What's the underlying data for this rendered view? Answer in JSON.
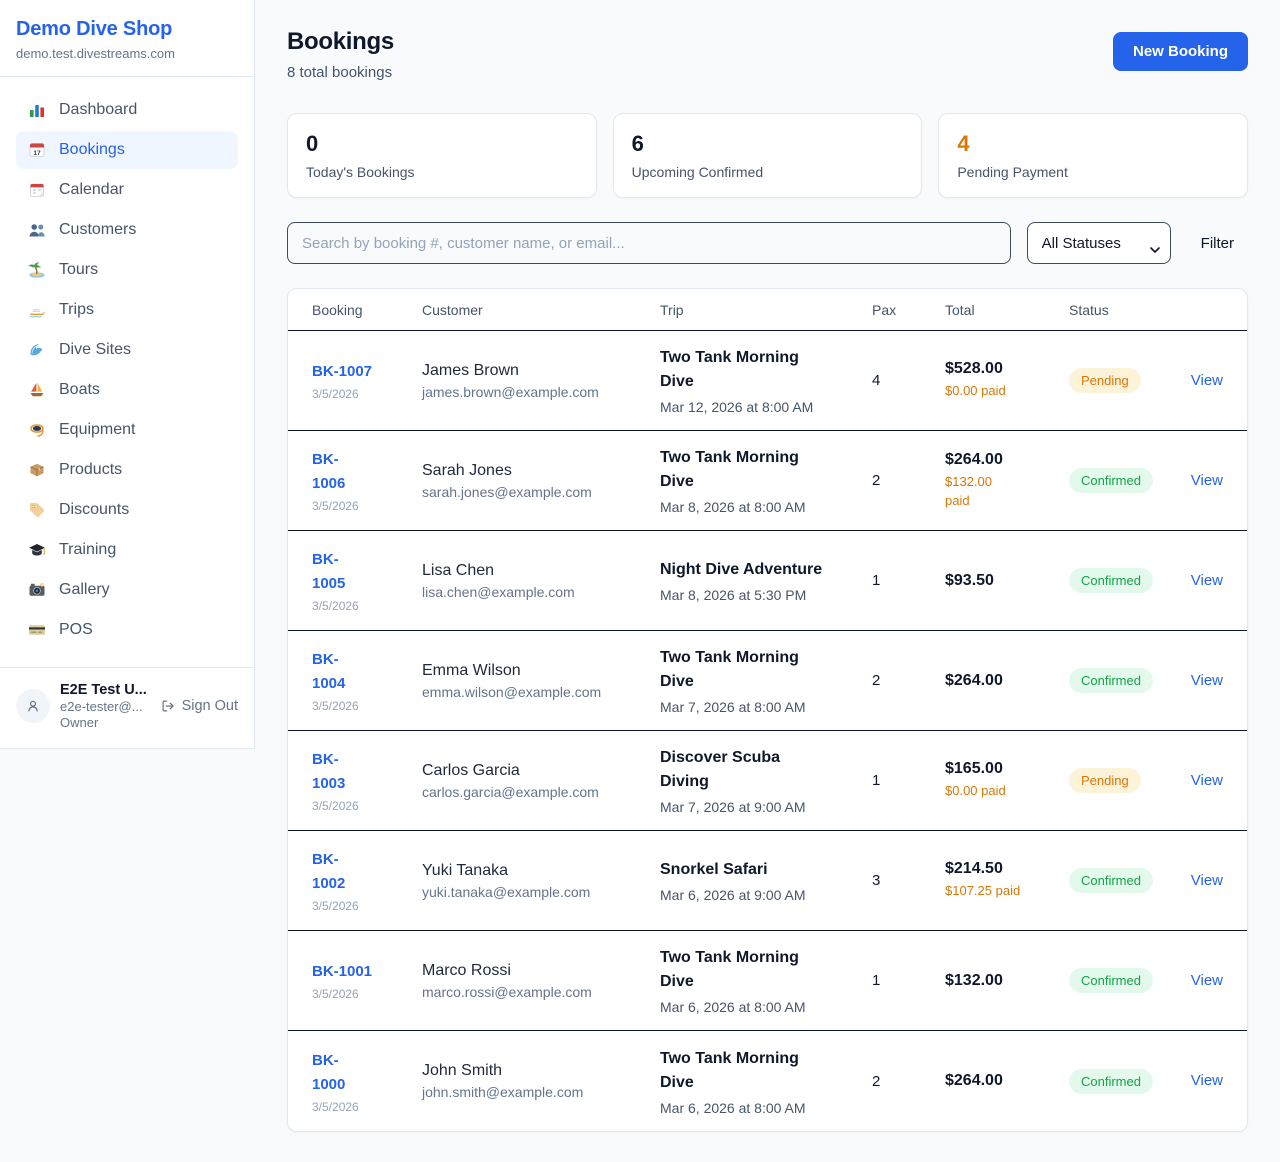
{
  "colors": {
    "brand": "#2563eb",
    "pending": "#d97706",
    "confirmed": "#16a34a",
    "link": "#2563eb"
  },
  "sidebar": {
    "brand": {
      "name": "Demo Dive Shop",
      "domain": "demo.test.divestreams.com"
    },
    "items": [
      {
        "icon": "bar-chart",
        "label": "Dashboard",
        "active": false
      },
      {
        "icon": "calendar-date",
        "label": "Bookings",
        "active": true
      },
      {
        "icon": "calendar",
        "label": "Calendar",
        "active": false
      },
      {
        "icon": "people",
        "label": "Customers",
        "active": false
      },
      {
        "icon": "island",
        "label": "Tours",
        "active": false
      },
      {
        "icon": "speedboat",
        "label": "Trips",
        "active": false
      },
      {
        "icon": "wave",
        "label": "Dive Sites",
        "active": false
      },
      {
        "icon": "sailboat",
        "label": "Boats",
        "active": false
      },
      {
        "icon": "dive-mask",
        "label": "Equipment",
        "active": false
      },
      {
        "icon": "package",
        "label": "Products",
        "active": false
      },
      {
        "icon": "tag",
        "label": "Discounts",
        "active": false
      },
      {
        "icon": "grad-cap",
        "label": "Training",
        "active": false
      },
      {
        "icon": "camera",
        "label": "Gallery",
        "active": false
      },
      {
        "icon": "credit-card",
        "label": "POS",
        "active": false
      }
    ],
    "user": {
      "name": "E2E Test U...",
      "email": "e2e-tester@...",
      "role": "Owner",
      "sign_out_label": "Sign Out"
    }
  },
  "header": {
    "title": "Bookings",
    "subtitle": "8 total bookings",
    "new_booking_label": "New Booking"
  },
  "stats": {
    "cards": [
      {
        "value": "0",
        "label": "Today's Bookings",
        "accent": "dark"
      },
      {
        "value": "6",
        "label": "Upcoming Confirmed",
        "accent": "dark"
      },
      {
        "value": "4",
        "label": "Pending Payment",
        "accent": "orange"
      }
    ]
  },
  "filters": {
    "search_placeholder": "Search by booking #, customer name, or email...",
    "status_select_value": "All Statuses",
    "filter_label": "Filter"
  },
  "table": {
    "columns": [
      "Booking",
      "Customer",
      "Trip",
      "Pax",
      "Total",
      "Status"
    ],
    "view_label": "View",
    "rows": [
      {
        "id": "BK-1007",
        "date": "3/5/2026",
        "customer": "James Brown",
        "email": "james.brown@example.com",
        "trip": "Two Tank Morning\nDive",
        "datetime": "Mar 12, 2026 at 8:00 AM",
        "pax": "4",
        "total": "$528.00",
        "paid": "$0.00 paid",
        "status": "Pending"
      },
      {
        "id": "BK-\n1006",
        "date": "3/5/2026",
        "customer": "Sarah Jones",
        "email": "sarah.jones@example.com",
        "trip": "Two Tank Morning\nDive",
        "datetime": "Mar 8, 2026 at 8:00 AM",
        "pax": "2",
        "total": "$264.00",
        "paid": "$132.00\npaid",
        "status": "Confirmed"
      },
      {
        "id": "BK-\n1005",
        "date": "3/5/2026",
        "customer": "Lisa Chen",
        "email": "lisa.chen@example.com",
        "trip": "Night Dive Adventure",
        "datetime": "Mar 8, 2026 at 5:30 PM",
        "pax": "1",
        "total": "$93.50",
        "status": "Confirmed"
      },
      {
        "id": "BK-\n1004",
        "date": "3/5/2026",
        "customer": "Emma Wilson",
        "email": "emma.wilson@example.com",
        "trip": "Two Tank Morning\nDive",
        "datetime": "Mar 7, 2026 at 8:00 AM",
        "pax": "2",
        "total": "$264.00",
        "status": "Confirmed"
      },
      {
        "id": "BK-\n1003",
        "date": "3/5/2026",
        "customer": "Carlos Garcia",
        "email": "carlos.garcia@example.com",
        "trip": "Discover Scuba\nDiving",
        "datetime": "Mar 7, 2026 at 9:00 AM",
        "pax": "1",
        "total": "$165.00",
        "paid": "$0.00 paid",
        "status": "Pending"
      },
      {
        "id": "BK-\n1002",
        "date": "3/5/2026",
        "customer": "Yuki Tanaka",
        "email": "yuki.tanaka@example.com",
        "trip": "Snorkel Safari",
        "datetime": "Mar 6, 2026 at 9:00 AM",
        "pax": "3",
        "total": "$214.50",
        "paid": "$107.25 paid",
        "status": "Confirmed"
      },
      {
        "id": "BK-1001",
        "date": "3/5/2026",
        "customer": "Marco Rossi",
        "email": "marco.rossi@example.com",
        "trip": "Two Tank Morning\nDive",
        "datetime": "Mar 6, 2026 at 8:00 AM",
        "pax": "1",
        "total": "$132.00",
        "status": "Confirmed"
      },
      {
        "id": "BK-\n1000",
        "date": "3/5/2026",
        "customer": "John Smith",
        "email": "john.smith@example.com",
        "trip": "Two Tank Morning\nDive",
        "datetime": "Mar 6, 2026 at 8:00 AM",
        "pax": "2",
        "total": "$264.00",
        "status": "Confirmed"
      }
    ]
  }
}
